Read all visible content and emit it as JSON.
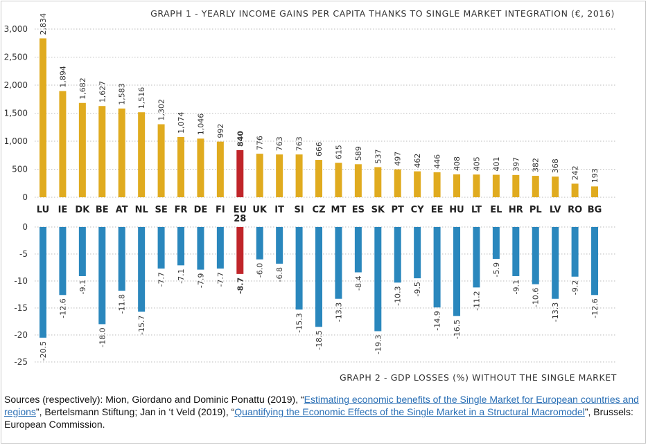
{
  "chart_data": [
    {
      "type": "bar",
      "title": "GRAPH 1 - YEARLY INCOME GAINS PER CAPITA THANKS TO SINGLE MARKET INTEGRATION (€, 2016)",
      "categories": [
        "LU",
        "IE",
        "DK",
        "BE",
        "AT",
        "NL",
        "SE",
        "FR",
        "DE",
        "FI",
        "EU 28",
        "UK",
        "IT",
        "SI",
        "CZ",
        "MT",
        "ES",
        "SK",
        "PT",
        "CY",
        "EE",
        "HU",
        "LT",
        "EL",
        "HR",
        "PL",
        "LV",
        "RO",
        "BG"
      ],
      "values": [
        2834,
        1894,
        1682,
        1627,
        1583,
        1516,
        1302,
        1074,
        1046,
        992,
        840,
        776,
        763,
        763,
        666,
        615,
        589,
        537,
        497,
        462,
        446,
        408,
        405,
        401,
        397,
        382,
        368,
        242,
        193
      ],
      "value_labels": [
        "2,834",
        "1,894",
        "1,682",
        "1,627",
        "1,583",
        "1,516",
        "1,302",
        "1,074",
        "1,046",
        "992",
        "840",
        "776",
        "763",
        "763",
        "666",
        "615",
        "589",
        "537",
        "497",
        "462",
        "446",
        "408",
        "405",
        "401",
        "397",
        "382",
        "368",
        "242",
        "193"
      ],
      "yticks": [
        "0",
        "500",
        "1,000",
        "1,500",
        "2,000",
        "2,500",
        "3,000"
      ],
      "ylim": [
        0,
        3000
      ],
      "grid": true,
      "highlight_category": "EU 28",
      "colors": {
        "bar": "#e0ab1f",
        "highlight": "#c0252a"
      }
    },
    {
      "type": "bar",
      "title": "GRAPH 2 - GDP LOSSES (%) WITHOUT THE SINGLE MARKET",
      "categories": [
        "LU",
        "IE",
        "DK",
        "BE",
        "AT",
        "NL",
        "SE",
        "FR",
        "DE",
        "FI",
        "EU 28",
        "UK",
        "IT",
        "SI",
        "CZ",
        "MT",
        "ES",
        "SK",
        "PT",
        "CY",
        "EE",
        "HU",
        "LT",
        "EL",
        "HR",
        "PL",
        "LV",
        "RO",
        "BG"
      ],
      "values": [
        -20.5,
        -12.6,
        -9.1,
        -18.0,
        -11.8,
        -15.7,
        -7.7,
        -7.1,
        -7.9,
        -7.7,
        -8.7,
        -6.0,
        -6.8,
        -15.3,
        -18.5,
        -13.3,
        -8.4,
        -19.3,
        -10.3,
        -9.5,
        -14.9,
        -16.5,
        -11.2,
        -5.9,
        -9.1,
        -10.6,
        -13.3,
        -9.2,
        -12.6
      ],
      "value_labels": [
        "-20.5",
        "-12.6",
        "-9.1",
        "-18.0",
        "-11.8",
        "-15.7",
        "-7.7",
        "-7.1",
        "-7.9",
        "-7.7",
        "-8.7",
        "-6.0",
        "-6.8",
        "-15.3",
        "-18.5",
        "-13.3",
        "-8.4",
        "-19.3",
        "-10.3",
        "-9.5",
        "-14.9",
        "-16.5",
        "-11.2",
        "-5.9",
        "-9.1",
        "-10.6",
        "-13.3",
        "-9.2",
        "-12.6"
      ],
      "yticks": [
        "0",
        "-5",
        "-10",
        "-15",
        "-20",
        "-25"
      ],
      "ylim": [
        -25,
        0
      ],
      "grid": true,
      "highlight_category": "EU 28",
      "colors": {
        "bar": "#2a87bd",
        "highlight": "#c0252a"
      }
    }
  ],
  "sources": {
    "prefix": "Sources (respectively): Mion, Giordano and Dominic Ponattu (2019), “",
    "link1": "Estimating economic benefits of the Single Market for European countries and regions",
    "middle": "”, Bertelsmann Stiftung; Jan in ‘t Veld (2019), “",
    "link2": "Quantifying the Economic Effects of the Single Market in a Structural Macromodel",
    "suffix": "”, Brussels: European Commission."
  }
}
